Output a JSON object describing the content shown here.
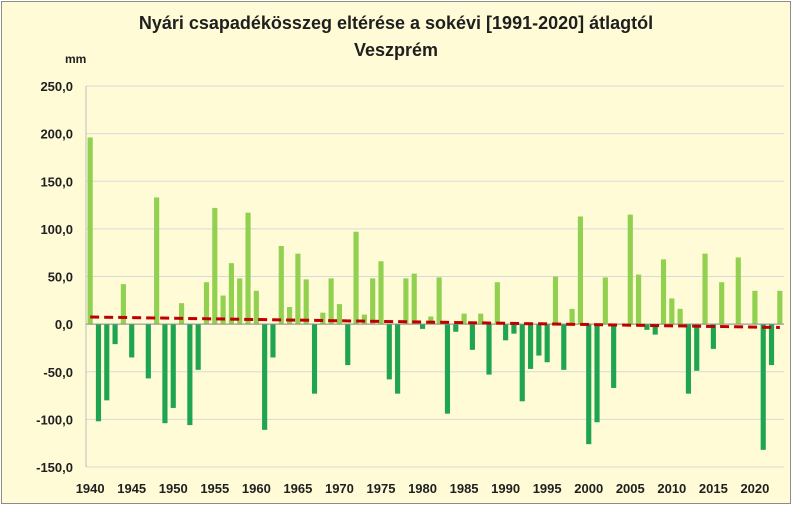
{
  "chart_data": {
    "type": "bar",
    "title": "Nyári csapadékösszeg  eltérése a sokévi  [1991-2020] átlagtól",
    "subtitle": "Veszprém",
    "ylabel": "mm",
    "ylim": [
      -150,
      250
    ],
    "y_ticks": [
      "250,0",
      "200,0",
      "150,0",
      "100,0",
      "50,0",
      "0,0",
      "-50,0",
      "-100,0",
      "-150,0"
    ],
    "x_ticks": [
      "1940",
      "1945",
      "1950",
      "1955",
      "1960",
      "1965",
      "1970",
      "1975",
      "1980",
      "1985",
      "1990",
      "1995",
      "2000",
      "2005",
      "2010",
      "2015",
      "2020"
    ],
    "grid": true,
    "colors": {
      "positive": "#92d050",
      "negative": "#1fa552",
      "trend": "#c00000",
      "background": "#fefbd6",
      "grid": "#d9d9d9"
    },
    "trend": {
      "style": "dashed",
      "x": [
        1940,
        2023
      ],
      "y": [
        7.5,
        -3.5
      ]
    },
    "x": [
      1940,
      1941,
      1942,
      1943,
      1944,
      1945,
      1946,
      1947,
      1948,
      1949,
      1950,
      1951,
      1952,
      1953,
      1954,
      1955,
      1956,
      1957,
      1958,
      1959,
      1960,
      1961,
      1962,
      1963,
      1964,
      1965,
      1966,
      1967,
      1968,
      1969,
      1970,
      1971,
      1972,
      1973,
      1974,
      1975,
      1976,
      1977,
      1978,
      1979,
      1980,
      1981,
      1982,
      1983,
      1984,
      1985,
      1986,
      1987,
      1988,
      1989,
      1990,
      1991,
      1992,
      1993,
      1994,
      1995,
      1996,
      1997,
      1998,
      1999,
      2000,
      2001,
      2002,
      2003,
      2004,
      2005,
      2006,
      2007,
      2008,
      2009,
      2010,
      2011,
      2012,
      2013,
      2014,
      2015,
      2016,
      2017,
      2018,
      2019,
      2020,
      2021,
      2022,
      2023
    ],
    "values": [
      196,
      -102,
      -80,
      -21,
      42,
      -35,
      0,
      -57,
      133,
      -104,
      -88,
      22,
      -106,
      -48,
      44,
      122,
      30,
      64,
      48,
      117,
      35,
      -111,
      -35,
      82,
      18,
      74,
      47,
      -73,
      12,
      48,
      21,
      -43,
      97,
      10,
      48,
      66,
      -58,
      -73,
      48,
      53,
      -5,
      8,
      49,
      -94,
      -8,
      11,
      -27,
      11,
      -53,
      44,
      -17,
      -10,
      -81,
      -47,
      -33,
      -40,
      50,
      -48,
      16,
      113,
      -126,
      -103,
      49,
      -67,
      0,
      115,
      52,
      -6,
      -11,
      68,
      27,
      16,
      -73,
      -49,
      74,
      -26,
      44,
      0,
      70,
      0,
      35,
      -132,
      -43,
      35
    ]
  }
}
